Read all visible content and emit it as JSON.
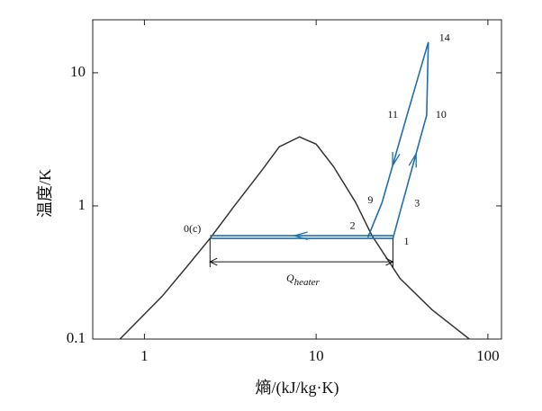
{
  "chart_data": {
    "type": "line",
    "xlabel": "熵/(kJ/kg·K)",
    "ylabel": "温度/K",
    "xscale": "log",
    "yscale": "log",
    "xlim": [
      0.5,
      120
    ],
    "ylim": [
      0.1,
      25
    ],
    "xticks": [
      1,
      10,
      100
    ],
    "yticks": [
      0.1,
      1,
      10
    ],
    "series": [
      {
        "color": "#333333",
        "x": [
          0.72,
          1.27,
          1.8,
          2.41,
          3.34,
          4.8,
          6.1,
          8.0,
          10,
          12.6,
          17.0,
          21.1,
          30.8,
          47.3,
          78
        ],
        "values": [
          0.1,
          0.21,
          0.36,
          0.57,
          1.0,
          1.83,
          2.78,
          3.3,
          2.91,
          1.98,
          1.06,
          0.6,
          0.285,
          0.166,
          0.1
        ]
      },
      {
        "color": "#1f6fad",
        "x": [
          2.41,
          28,
          31.5,
          44,
          45,
          33.8,
          24.2,
          20
        ],
        "values": [
          0.57,
          0.57,
          1.0,
          4.8,
          17,
          4.79,
          1.06,
          0.58
        ],
        "point_labels": [
          "0(c)",
          "1",
          "3",
          "10",
          "14",
          "11",
          "9",
          "2"
        ]
      }
    ],
    "annotation": {
      "text": "Q",
      "subscript": "heater"
    }
  }
}
